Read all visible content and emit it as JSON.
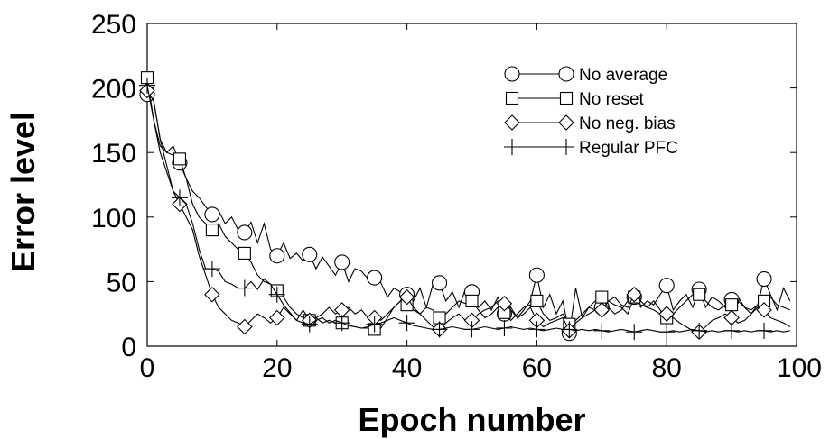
{
  "chart_data": {
    "type": "line",
    "title": "",
    "xlabel": "Epoch number",
    "ylabel": "Error level",
    "xlim": [
      0,
      100
    ],
    "ylim": [
      0,
      250
    ],
    "xticks": [
      0,
      20,
      40,
      60,
      80,
      100
    ],
    "yticks": [
      0,
      50,
      100,
      150,
      200,
      250
    ],
    "grid": false,
    "legend_position": "top-right",
    "marker_every": 5,
    "series": [
      {
        "name": "No average",
        "marker": "circle",
        "x": [
          0,
          1,
          2,
          3,
          4,
          5,
          6,
          7,
          8,
          9,
          10,
          11,
          12,
          13,
          14,
          15,
          16,
          17,
          18,
          19,
          20,
          21,
          22,
          23,
          24,
          25,
          26,
          27,
          28,
          29,
          30,
          31,
          32,
          33,
          34,
          35,
          36,
          37,
          38,
          39,
          40,
          41,
          42,
          43,
          44,
          45,
          46,
          47,
          48,
          49,
          50,
          51,
          52,
          53,
          54,
          55,
          56,
          57,
          58,
          59,
          60,
          61,
          62,
          63,
          64,
          65,
          66,
          67,
          68,
          69,
          70,
          71,
          72,
          73,
          74,
          75,
          76,
          77,
          78,
          79,
          80,
          81,
          82,
          83,
          84,
          85,
          86,
          87,
          88,
          89,
          90,
          91,
          92,
          93,
          94,
          95,
          96,
          97,
          98,
          99
        ],
        "y": [
          195,
          190,
          160,
          150,
          155,
          142,
          130,
          120,
          115,
          108,
          102,
          105,
          95,
          100,
          90,
          88,
          96,
          80,
          95,
          75,
          70,
          80,
          68,
          72,
          66,
          71,
          60,
          69,
          62,
          55,
          65,
          50,
          60,
          58,
          52,
          53,
          49,
          38,
          45,
          42,
          40,
          35,
          45,
          30,
          48,
          49,
          35,
          42,
          30,
          44,
          42,
          30,
          35,
          28,
          38,
          25,
          30,
          22,
          28,
          35,
          55,
          30,
          40,
          25,
          35,
          10,
          45,
          22,
          30,
          28,
          30,
          35,
          32,
          30,
          25,
          38,
          30,
          35,
          32,
          40,
          47,
          28,
          35,
          40,
          30,
          44,
          30,
          38,
          35,
          30,
          36,
          38,
          30,
          25,
          32,
          52,
          40,
          28,
          45,
          35
        ]
      },
      {
        "name": "No reset",
        "marker": "square",
        "x": [
          0,
          1,
          2,
          3,
          4,
          5,
          6,
          7,
          8,
          9,
          10,
          11,
          12,
          13,
          14,
          15,
          16,
          17,
          18,
          19,
          20,
          21,
          22,
          23,
          24,
          25,
          26,
          27,
          28,
          29,
          30,
          31,
          32,
          33,
          34,
          35,
          36,
          37,
          38,
          39,
          40,
          41,
          42,
          43,
          44,
          45,
          46,
          47,
          48,
          49,
          50,
          51,
          52,
          53,
          54,
          55,
          56,
          57,
          58,
          59,
          60,
          61,
          62,
          63,
          64,
          65,
          66,
          67,
          68,
          69,
          70,
          71,
          72,
          73,
          74,
          75,
          76,
          77,
          78,
          79,
          80,
          81,
          82,
          83,
          84,
          85,
          86,
          87,
          88,
          89,
          90,
          91,
          92,
          93,
          94,
          95,
          96,
          97,
          98,
          99
        ],
        "y": [
          208,
          175,
          155,
          150,
          148,
          145,
          130,
          110,
          100,
          95,
          90,
          95,
          85,
          80,
          75,
          72,
          65,
          55,
          50,
          48,
          43,
          38,
          30,
          25,
          22,
          20,
          22,
          18,
          20,
          18,
          18,
          16,
          15,
          14,
          14,
          13,
          14,
          22,
          30,
          35,
          32,
          28,
          25,
          30,
          28,
          22,
          25,
          30,
          35,
          33,
          35,
          28,
          22,
          25,
          30,
          26,
          20,
          25,
          30,
          32,
          35,
          25,
          20,
          22,
          25,
          17,
          20,
          25,
          30,
          35,
          38,
          30,
          25,
          28,
          35,
          38,
          32,
          30,
          35,
          28,
          22,
          25,
          30,
          35,
          40,
          40,
          35,
          30,
          28,
          32,
          32,
          35,
          30,
          28,
          32,
          35,
          38,
          32,
          30,
          28
        ]
      },
      {
        "name": "No neg. bias",
        "marker": "diamond",
        "x": [
          0,
          1,
          2,
          3,
          4,
          5,
          6,
          7,
          8,
          9,
          10,
          11,
          12,
          13,
          14,
          15,
          16,
          17,
          18,
          19,
          20,
          21,
          22,
          23,
          24,
          25,
          26,
          27,
          28,
          29,
          30,
          31,
          32,
          33,
          34,
          35,
          36,
          37,
          38,
          39,
          40,
          41,
          42,
          43,
          44,
          45,
          46,
          47,
          48,
          49,
          50,
          51,
          52,
          53,
          54,
          55,
          56,
          57,
          58,
          59,
          60,
          61,
          62,
          63,
          64,
          65,
          66,
          67,
          68,
          69,
          70,
          71,
          72,
          73,
          74,
          75,
          76,
          77,
          78,
          79,
          80,
          81,
          82,
          83,
          84,
          85,
          86,
          87,
          88,
          89,
          90,
          91,
          92,
          93,
          94,
          95,
          96,
          97,
          98,
          99
        ],
        "y": [
          198,
          190,
          160,
          140,
          120,
          110,
          100,
          90,
          70,
          55,
          40,
          30,
          25,
          20,
          18,
          15,
          20,
          25,
          22,
          18,
          22,
          30,
          25,
          20,
          28,
          20,
          22,
          25,
          30,
          25,
          28,
          30,
          25,
          28,
          22,
          22,
          20,
          25,
          30,
          35,
          38,
          30,
          25,
          20,
          15,
          13,
          18,
          22,
          25,
          20,
          20,
          25,
          28,
          30,
          35,
          33,
          28,
          22,
          25,
          30,
          20,
          15,
          18,
          20,
          22,
          12,
          18,
          22,
          25,
          28,
          28,
          35,
          38,
          32,
          30,
          40,
          35,
          30,
          28,
          25,
          25,
          22,
          18,
          15,
          12,
          11,
          15,
          20,
          22,
          25,
          22,
          18,
          20,
          25,
          30,
          28,
          22,
          20,
          18,
          15
        ]
      },
      {
        "name": "Regular PFC",
        "marker": "plus",
        "x": [
          0,
          1,
          2,
          3,
          4,
          5,
          6,
          7,
          8,
          9,
          10,
          11,
          12,
          13,
          14,
          15,
          16,
          17,
          18,
          19,
          20,
          21,
          22,
          23,
          24,
          25,
          26,
          27,
          28,
          29,
          30,
          31,
          32,
          33,
          34,
          35,
          36,
          37,
          38,
          39,
          40,
          41,
          42,
          43,
          44,
          45,
          46,
          47,
          48,
          49,
          50,
          51,
          52,
          53,
          54,
          55,
          56,
          57,
          58,
          59,
          60,
          61,
          62,
          63,
          64,
          65,
          66,
          67,
          68,
          69,
          70,
          71,
          72,
          73,
          74,
          75,
          76,
          77,
          78,
          79,
          80,
          81,
          82,
          83,
          84,
          85,
          86,
          87,
          88,
          89,
          90,
          91,
          92,
          93,
          94,
          95,
          96,
          97,
          98,
          99
        ],
        "y": [
          202,
          175,
          150,
          135,
          120,
          115,
          110,
          95,
          75,
          60,
          60,
          58,
          50,
          48,
          45,
          45,
          50,
          44,
          52,
          48,
          40,
          32,
          26,
          20,
          18,
          17,
          20,
          22,
          18,
          20,
          18,
          16,
          15,
          14,
          15,
          17,
          18,
          20,
          22,
          20,
          18,
          16,
          15,
          14,
          13,
          13,
          14,
          15,
          14,
          13,
          13,
          14,
          15,
          14,
          13,
          14,
          15,
          14,
          13,
          14,
          13,
          12,
          13,
          14,
          13,
          13,
          12,
          13,
          12,
          13,
          12,
          11,
          12,
          13,
          12,
          11,
          12,
          13,
          12,
          11,
          11,
          12,
          11,
          12,
          13,
          12,
          11,
          12,
          11,
          12,
          12,
          11,
          12,
          11,
          12,
          12,
          11,
          12,
          11,
          12
        ]
      }
    ]
  }
}
